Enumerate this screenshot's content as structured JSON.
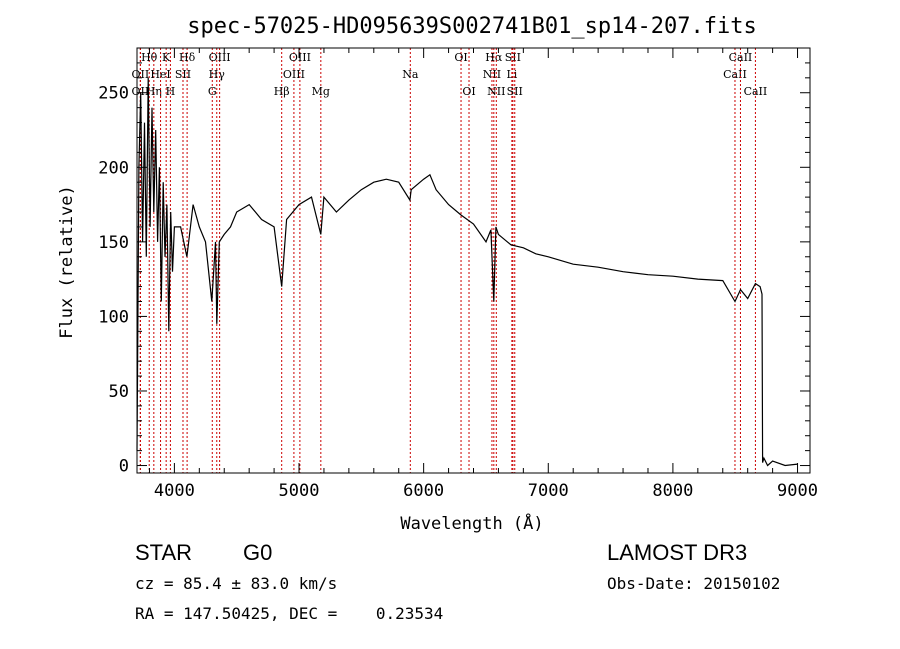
{
  "chart_data": {
    "type": "line",
    "title": "spec-57025-HD095639S002741B01_sp14-207.fits",
    "xlabel": "Wavelength (Å)",
    "ylabel": "Flux (relative)",
    "xlim": [
      3700,
      9100
    ],
    "ylim": [
      -5,
      280
    ],
    "x_ticks": [
      4000,
      5000,
      6000,
      7000,
      8000,
      9000
    ],
    "x_tick_labels": [
      "4000",
      "5000",
      "6000",
      "7000",
      "8000",
      "9000"
    ],
    "y_ticks": [
      0,
      50,
      100,
      150,
      200,
      250
    ],
    "y_tick_labels": [
      "0",
      "50",
      "100",
      "150",
      "200",
      "250"
    ],
    "grid": false,
    "series": [
      {
        "x": [
          3700,
          3715,
          3730,
          3745,
          3760,
          3775,
          3790,
          3805,
          3820,
          3835,
          3850,
          3865,
          3880,
          3895,
          3910,
          3925,
          3940,
          3955,
          3970,
          3985,
          4000,
          4050,
          4100,
          4150,
          4200,
          4250,
          4300,
          4330,
          4340,
          4360,
          4400,
          4450,
          4500,
          4600,
          4700,
          4800,
          4861,
          4900,
          5000,
          5100,
          5175,
          5200,
          5300,
          5400,
          5500,
          5600,
          5700,
          5800,
          5890,
          5900,
          6000,
          6050,
          6100,
          6200,
          6300,
          6400,
          6500,
          6540,
          6563,
          6580,
          6600,
          6700,
          6800,
          6900,
          7000,
          7200,
          7400,
          7600,
          7800,
          8000,
          8200,
          8400,
          8498,
          8542,
          8600,
          8662,
          8700,
          8715,
          8720,
          8730,
          8760,
          8800,
          8900,
          9000
        ],
        "y": [
          10,
          200,
          250,
          150,
          230,
          140,
          260,
          160,
          240,
          170,
          225,
          150,
          200,
          110,
          190,
          140,
          175,
          90,
          170,
          130,
          160,
          160,
          140,
          175,
          160,
          150,
          110,
          150,
          95,
          150,
          155,
          160,
          170,
          175,
          165,
          160,
          120,
          165,
          175,
          180,
          155,
          180,
          170,
          178,
          185,
          190,
          192,
          190,
          178,
          185,
          192,
          195,
          185,
          175,
          168,
          162,
          150,
          158,
          110,
          160,
          155,
          148,
          146,
          142,
          140,
          135,
          133,
          130,
          128,
          127,
          125,
          124,
          110,
          118,
          112,
          122,
          120,
          115,
          2,
          5,
          0,
          3,
          0,
          1
        ]
      }
    ],
    "line_markers": [
      {
        "label": "OII",
        "x": 3727,
        "row": 3
      },
      {
        "label": "Hθ",
        "x": 3798,
        "row": 1
      },
      {
        "label": "OII",
        "x": 3727,
        "row": 2
      },
      {
        "label": "Hη",
        "x": 3835,
        "row": 3
      },
      {
        "label": "HeI",
        "x": 3889,
        "row": 2
      },
      {
        "label": "K",
        "x": 3934,
        "row": 1
      },
      {
        "label": "H",
        "x": 3968,
        "row": 3
      },
      {
        "label": "SII",
        "x": 4069,
        "row": 2
      },
      {
        "label": "Hδ",
        "x": 4102,
        "row": 1
      },
      {
        "label": "G",
        "x": 4304,
        "row": 3
      },
      {
        "label": "Hγ",
        "x": 4340,
        "row": 2
      },
      {
        "label": "OIII",
        "x": 4363,
        "row": 1
      },
      {
        "label": "Hβ",
        "x": 4861,
        "row": 3
      },
      {
        "label": "OIII",
        "x": 4959,
        "row": 2
      },
      {
        "label": "OIII",
        "x": 5007,
        "row": 1
      },
      {
        "label": "Mg",
        "x": 5175,
        "row": 3
      },
      {
        "label": "Na",
        "x": 5893,
        "row": 2
      },
      {
        "label": "OI",
        "x": 6300,
        "row": 1
      },
      {
        "label": "OI",
        "x": 6364,
        "row": 3
      },
      {
        "label": "NII",
        "x": 6548,
        "row": 2
      },
      {
        "label": "Hα",
        "x": 6563,
        "row": 1
      },
      {
        "label": "NII",
        "x": 6583,
        "row": 3
      },
      {
        "label": "Li",
        "x": 6708,
        "row": 2
      },
      {
        "label": "SII",
        "x": 6716,
        "row": 1
      },
      {
        "label": "SII",
        "x": 6731,
        "row": 3
      },
      {
        "label": "CaII",
        "x": 8498,
        "row": 2
      },
      {
        "label": "CaII",
        "x": 8542,
        "row": 1
      },
      {
        "label": "CaII",
        "x": 8662,
        "row": 3
      }
    ],
    "marker_color": "#cc0000"
  },
  "info": {
    "object_class": "STAR",
    "subclass": "G0",
    "survey": "LAMOST DR3",
    "redshift": "cz = 85.4 ± 83.0 km/s",
    "obs_date": "Obs-Date: 20150102",
    "coords": "RA = 147.50425, DEC =    0.23534"
  }
}
